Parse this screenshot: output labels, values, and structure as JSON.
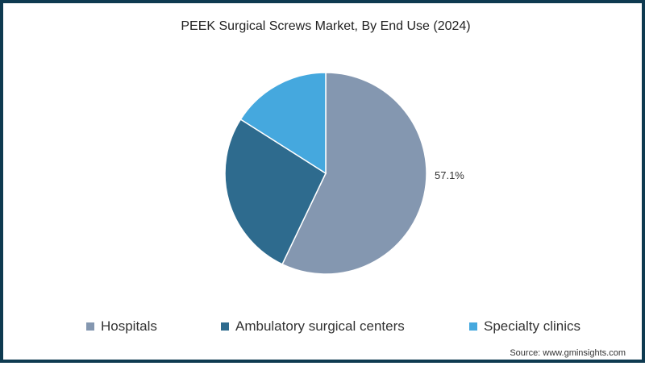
{
  "title": "PEEK Surgical Screws Market, By End Use (2024)",
  "source": "Source: www.gminsights.com",
  "colors": {
    "border": "#0e3a50"
  },
  "chart_data": {
    "type": "pie",
    "title": "PEEK Surgical Screws Market, By End Use (2024)",
    "categories": [
      "Hospitals",
      "Ambulatory surgical centers",
      "Specialty clinics"
    ],
    "values": [
      57.1,
      26.9,
      16.0
    ],
    "colors": [
      "#8497b0",
      "#2e6b8e",
      "#45a8de"
    ],
    "data_labels": [
      "57.1%",
      "",
      ""
    ],
    "start_angle_deg": 0,
    "direction": "clockwise",
    "legend_position": "bottom"
  },
  "legend": [
    {
      "label": "Hospitals",
      "color": "#8497b0"
    },
    {
      "label": "Ambulatory surgical centers",
      "color": "#2e6b8e"
    },
    {
      "label": "Specialty clinics",
      "color": "#45a8de"
    }
  ],
  "labels": {
    "hospitals_pct": "57.1%"
  }
}
